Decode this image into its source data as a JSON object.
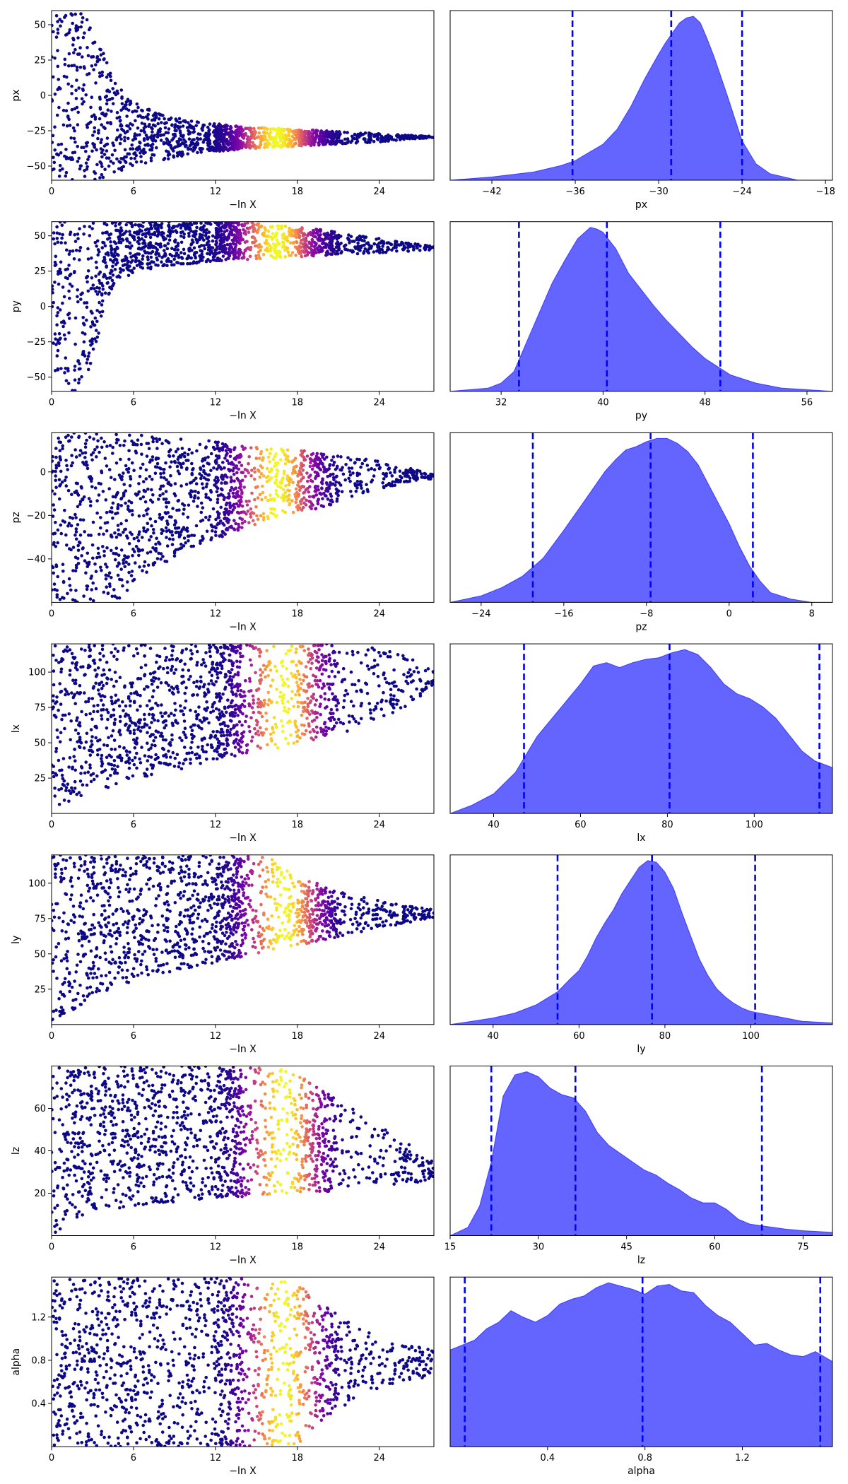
{
  "chart_data": [
    {
      "type": "scatter",
      "xlabel": "−ln X",
      "ylabel": "px",
      "xlim": [
        0,
        28
      ],
      "ylim": [
        -60,
        60
      ],
      "xticks": [
        0,
        6,
        12,
        18,
        24
      ],
      "yticks": [
        50,
        25,
        0,
        -25,
        -50
      ],
      "envelope": {
        "x": [
          0,
          1,
          2,
          3,
          4,
          5,
          6,
          8,
          10,
          12,
          14,
          16,
          18,
          20,
          22,
          24,
          26,
          28
        ],
        "lo": [
          -60,
          -60,
          -60,
          -60,
          -58,
          -54,
          -50,
          -46,
          -42,
          -40,
          -38,
          -37,
          -36,
          -35,
          -34,
          -33,
          -31,
          -30
        ],
        "hi": [
          60,
          60,
          60,
          50,
          25,
          5,
          -5,
          -13,
          -18,
          -20,
          -22,
          -23,
          -24,
          -25,
          -26,
          -27,
          -28,
          -29
        ]
      },
      "colormap": "plasma",
      "color_peak_x": 16.5
    },
    {
      "type": "area",
      "xlabel": "px",
      "xlim": [
        -45,
        -17.5
      ],
      "xticks": [
        -42,
        -36,
        -30,
        -24,
        -18
      ],
      "x": [
        -45,
        -42,
        -39,
        -37,
        -36,
        -35,
        -34,
        -33,
        -32,
        -31,
        -30,
        -29.5,
        -29,
        -28.5,
        -28,
        -27.5,
        -27,
        -26.5,
        -26,
        -25,
        -24,
        -23,
        -22,
        -20,
        -17.5
      ],
      "density": [
        0.0,
        0.02,
        0.05,
        0.09,
        0.12,
        0.17,
        0.22,
        0.31,
        0.45,
        0.62,
        0.77,
        0.84,
        0.9,
        0.96,
        0.99,
        1.0,
        0.96,
        0.86,
        0.75,
        0.5,
        0.24,
        0.1,
        0.04,
        0.0,
        0.0
      ],
      "quantiles": [
        -36.2,
        -29.1,
        -24.0
      ],
      "color": "#6464ff",
      "line_color": "#0000ff"
    },
    {
      "type": "scatter",
      "xlabel": "−ln X",
      "ylabel": "py",
      "xlim": [
        0,
        28
      ],
      "ylim": [
        -60,
        60
      ],
      "xticks": [
        0,
        6,
        12,
        18,
        24
      ],
      "yticks": [
        50,
        25,
        0,
        -25,
        -50
      ],
      "envelope": {
        "x": [
          0,
          1,
          2,
          3,
          4,
          5,
          6,
          8,
          10,
          12,
          14,
          16,
          18,
          20,
          22,
          24,
          26,
          28
        ],
        "lo": [
          -60,
          -60,
          -60,
          -40,
          5,
          18,
          24,
          28,
          30,
          32,
          33,
          34,
          35,
          36,
          37,
          38,
          39,
          40
        ],
        "hi": [
          60,
          60,
          60,
          60,
          60,
          60,
          60,
          60,
          60,
          60,
          60,
          58,
          56,
          54,
          51,
          48,
          45,
          43
        ]
      },
      "colormap": "plasma",
      "color_peak_x": 16.5
    },
    {
      "type": "area",
      "xlabel": "py",
      "xlim": [
        28,
        58
      ],
      "xticks": [
        32,
        40,
        48,
        56
      ],
      "x": [
        28,
        31,
        32,
        33,
        34,
        35,
        36,
        37,
        38,
        39,
        39.5,
        40,
        41,
        42,
        43,
        44,
        45,
        46,
        47,
        48,
        49,
        50,
        52,
        54,
        56,
        58
      ],
      "density": [
        0.0,
        0.02,
        0.05,
        0.12,
        0.3,
        0.48,
        0.66,
        0.8,
        0.93,
        1.0,
        0.99,
        0.97,
        0.87,
        0.72,
        0.62,
        0.52,
        0.43,
        0.35,
        0.27,
        0.2,
        0.15,
        0.1,
        0.05,
        0.02,
        0.01,
        0.0
      ],
      "quantiles": [
        33.4,
        40.3,
        49.2
      ],
      "color": "#6464ff",
      "line_color": "#0000ff"
    },
    {
      "type": "scatter",
      "xlabel": "−ln X",
      "ylabel": "pz",
      "xlim": [
        0,
        28
      ],
      "ylim": [
        -60,
        18
      ],
      "xticks": [
        0,
        6,
        12,
        18,
        24
      ],
      "yticks": [
        0,
        -20,
        -40
      ],
      "envelope": {
        "x": [
          0,
          1,
          2,
          3,
          4,
          5,
          6,
          8,
          10,
          12,
          14,
          16,
          18,
          20,
          22,
          24,
          26,
          28
        ],
        "lo": [
          -60,
          -60,
          -60,
          -60,
          -60,
          -58,
          -52,
          -43,
          -36,
          -31,
          -26,
          -22,
          -19,
          -16,
          -12,
          -8,
          -5,
          -3
        ],
        "hi": [
          18,
          18,
          18,
          18,
          18,
          18,
          18,
          17,
          16,
          14,
          12,
          11,
          10,
          9,
          7,
          5,
          2,
          -1
        ]
      },
      "colormap": "plasma",
      "color_peak_x": 16.5
    },
    {
      "type": "area",
      "xlabel": "pz",
      "xlim": [
        -27,
        10
      ],
      "xticks": [
        -24,
        -16,
        -8,
        0,
        8
      ],
      "x": [
        -27,
        -24,
        -22,
        -20,
        -18,
        -16,
        -14,
        -12,
        -11,
        -10,
        -9,
        -8,
        -7,
        -6,
        -5,
        -4,
        -3,
        -2,
        -1,
        0,
        1,
        2,
        3,
        4,
        6,
        8,
        10
      ],
      "density": [
        0.0,
        0.04,
        0.09,
        0.16,
        0.27,
        0.44,
        0.62,
        0.8,
        0.87,
        0.93,
        0.95,
        0.98,
        1.0,
        1.0,
        0.97,
        0.92,
        0.84,
        0.72,
        0.6,
        0.48,
        0.34,
        0.22,
        0.13,
        0.06,
        0.02,
        0.0,
        0.0
      ],
      "quantiles": [
        -19.0,
        -7.6,
        2.3
      ],
      "color": "#6464ff",
      "line_color": "#0000ff"
    },
    {
      "type": "scatter",
      "xlabel": "−ln X",
      "ylabel": "lx",
      "xlim": [
        0,
        28
      ],
      "ylim": [
        0,
        120
      ],
      "xticks": [
        0,
        6,
        12,
        18,
        24
      ],
      "yticks": [
        100,
        75,
        50,
        25
      ],
      "envelope": {
        "x": [
          0,
          1,
          2,
          3,
          4,
          5,
          6,
          8,
          10,
          12,
          14,
          16,
          18,
          20,
          22,
          24,
          26,
          28
        ],
        "lo": [
          0,
          5,
          10,
          15,
          18,
          21,
          24,
          28,
          32,
          37,
          41,
          45,
          49,
          54,
          59,
          66,
          75,
          90
        ],
        "hi": [
          120,
          120,
          120,
          120,
          120,
          120,
          120,
          120,
          120,
          120,
          120,
          120,
          120,
          120,
          120,
          117,
          112,
          100
        ]
      },
      "colormap": "plasma",
      "color_peak_x": 17
    },
    {
      "type": "area",
      "xlabel": "lx",
      "xlim": [
        30,
        118
      ],
      "xticks": [
        40,
        60,
        80,
        100
      ],
      "x": [
        30,
        35,
        40,
        45,
        50,
        55,
        60,
        63,
        66,
        69,
        72,
        75,
        78,
        81,
        84,
        87,
        90,
        93,
        96,
        99,
        102,
        105,
        108,
        111,
        114,
        118
      ],
      "density": [
        0.0,
        0.05,
        0.12,
        0.25,
        0.47,
        0.63,
        0.79,
        0.9,
        0.92,
        0.89,
        0.92,
        0.94,
        0.95,
        0.98,
        1.0,
        0.97,
        0.89,
        0.79,
        0.73,
        0.7,
        0.65,
        0.58,
        0.48,
        0.38,
        0.32,
        0.28
      ],
      "quantiles": [
        47.0,
        80.5,
        115.0
      ],
      "color": "#6464ff",
      "line_color": "#0000ff"
    },
    {
      "type": "scatter",
      "xlabel": "−ln X",
      "ylabel": "ly",
      "xlim": [
        0,
        28
      ],
      "ylim": [
        0,
        120
      ],
      "xticks": [
        0,
        6,
        12,
        18,
        24
      ],
      "yticks": [
        100,
        75,
        50,
        25
      ],
      "envelope": {
        "x": [
          0,
          1,
          2,
          3,
          4,
          5,
          6,
          8,
          10,
          12,
          14,
          16,
          18,
          20,
          22,
          24,
          26,
          28
        ],
        "lo": [
          0,
          5,
          12,
          18,
          23,
          27,
          30,
          35,
          40,
          44,
          48,
          52,
          56,
          60,
          64,
          68,
          72,
          76
        ],
        "hi": [
          120,
          120,
          120,
          120,
          120,
          120,
          120,
          120,
          120,
          120,
          120,
          118,
          106,
          98,
          92,
          88,
          84,
          82
        ]
      },
      "colormap": "plasma",
      "color_peak_x": 17
    },
    {
      "type": "area",
      "xlabel": "ly",
      "xlim": [
        30,
        119
      ],
      "xticks": [
        40,
        60,
        80,
        100
      ],
      "x": [
        30,
        35,
        40,
        45,
        50,
        55,
        58,
        60,
        62,
        64,
        66,
        68,
        70,
        72,
        74,
        76,
        78,
        80,
        82,
        84,
        86,
        88,
        90,
        92,
        94,
        96,
        98,
        100,
        104,
        108,
        112,
        119
      ],
      "density": [
        0.0,
        0.02,
        0.04,
        0.07,
        0.12,
        0.2,
        0.28,
        0.33,
        0.42,
        0.53,
        0.62,
        0.7,
        0.8,
        0.88,
        0.96,
        1.0,
        0.99,
        0.93,
        0.83,
        0.68,
        0.54,
        0.4,
        0.3,
        0.22,
        0.17,
        0.13,
        0.1,
        0.08,
        0.06,
        0.04,
        0.02,
        0.01
      ],
      "quantiles": [
        55.0,
        77.0,
        101.0
      ],
      "color": "#6464ff",
      "line_color": "#0000ff"
    },
    {
      "type": "scatter",
      "xlabel": "−ln X",
      "ylabel": "lz",
      "xlim": [
        0,
        28
      ],
      "ylim": [
        0,
        80
      ],
      "xticks": [
        0,
        6,
        12,
        18,
        24
      ],
      "yticks": [
        60,
        40,
        20
      ],
      "envelope": {
        "x": [
          0,
          1,
          2,
          3,
          4,
          5,
          6,
          8,
          10,
          12,
          14,
          16,
          18,
          20,
          22,
          24,
          26,
          28
        ],
        "lo": [
          0,
          5,
          9,
          11,
          12,
          13,
          14,
          15,
          16,
          17,
          18,
          19,
          20,
          20,
          21,
          22,
          24,
          27
        ],
        "hi": [
          80,
          80,
          80,
          80,
          80,
          80,
          80,
          80,
          80,
          80,
          80,
          80,
          76,
          68,
          60,
          52,
          44,
          36
        ]
      },
      "colormap": "plasma",
      "color_peak_x": 17
    },
    {
      "type": "area",
      "xlabel": "lz",
      "xlim": [
        15,
        80
      ],
      "xticks": [
        15,
        30,
        45,
        60,
        75
      ],
      "x": [
        15,
        18,
        20,
        22,
        24,
        26,
        28,
        30,
        32,
        34,
        36,
        38,
        40,
        42,
        44,
        46,
        48,
        50,
        52,
        54,
        56,
        58,
        60,
        62,
        64,
        66,
        68,
        70,
        72,
        75,
        80
      ],
      "density": [
        0.0,
        0.05,
        0.18,
        0.45,
        0.85,
        0.98,
        1.0,
        0.97,
        0.9,
        0.86,
        0.84,
        0.76,
        0.63,
        0.55,
        0.5,
        0.45,
        0.4,
        0.37,
        0.32,
        0.28,
        0.23,
        0.2,
        0.2,
        0.16,
        0.1,
        0.07,
        0.06,
        0.05,
        0.04,
        0.03,
        0.02
      ],
      "quantiles": [
        22.0,
        36.3,
        68.0
      ],
      "color": "#6464ff",
      "line_color": "#0000ff"
    },
    {
      "type": "scatter",
      "xlabel": "−ln X",
      "ylabel": "alpha",
      "xlim": [
        0,
        28
      ],
      "ylim": [
        0,
        1.57
      ],
      "xticks": [
        0,
        6,
        12,
        18,
        24
      ],
      "yticks": [
        1.2,
        0.8,
        0.4
      ],
      "envelope": {
        "x": [
          0,
          2,
          4,
          6,
          8,
          10,
          12,
          14,
          16,
          18,
          19,
          20,
          21,
          22,
          23,
          24,
          25,
          26,
          27,
          28
        ],
        "lo": [
          0,
          0,
          0,
          0,
          0,
          0,
          0,
          0,
          0,
          0.03,
          0.12,
          0.24,
          0.34,
          0.43,
          0.49,
          0.53,
          0.57,
          0.6,
          0.62,
          0.65
        ],
        "hi": [
          1.57,
          1.57,
          1.57,
          1.57,
          1.57,
          1.57,
          1.57,
          1.57,
          1.57,
          1.5,
          1.44,
          1.33,
          1.23,
          1.14,
          1.07,
          1.01,
          0.97,
          0.94,
          0.92,
          0.9
        ]
      },
      "colormap": "plasma",
      "color_peak_x": 17
    },
    {
      "type": "area",
      "xlabel": "alpha",
      "xlim": [
        0.0,
        1.57
      ],
      "xticks": [
        0.4,
        0.8,
        1.2
      ],
      "x": [
        0.0,
        0.05,
        0.1,
        0.15,
        0.2,
        0.25,
        0.3,
        0.35,
        0.4,
        0.45,
        0.5,
        0.55,
        0.6,
        0.65,
        0.7,
        0.75,
        0.8,
        0.85,
        0.9,
        0.95,
        1.0,
        1.05,
        1.1,
        1.15,
        1.2,
        1.25,
        1.3,
        1.35,
        1.4,
        1.45,
        1.5,
        1.57
      ],
      "density": [
        0.59,
        0.62,
        0.65,
        0.72,
        0.76,
        0.83,
        0.79,
        0.76,
        0.8,
        0.87,
        0.9,
        0.92,
        0.97,
        1.0,
        0.98,
        0.96,
        0.93,
        0.98,
        0.99,
        0.95,
        0.94,
        0.86,
        0.8,
        0.76,
        0.69,
        0.62,
        0.63,
        0.59,
        0.56,
        0.55,
        0.58,
        0.52
      ],
      "quantiles": [
        0.06,
        0.79,
        1.52
      ],
      "color": "#6464ff",
      "line_color": "#0000ff"
    }
  ]
}
